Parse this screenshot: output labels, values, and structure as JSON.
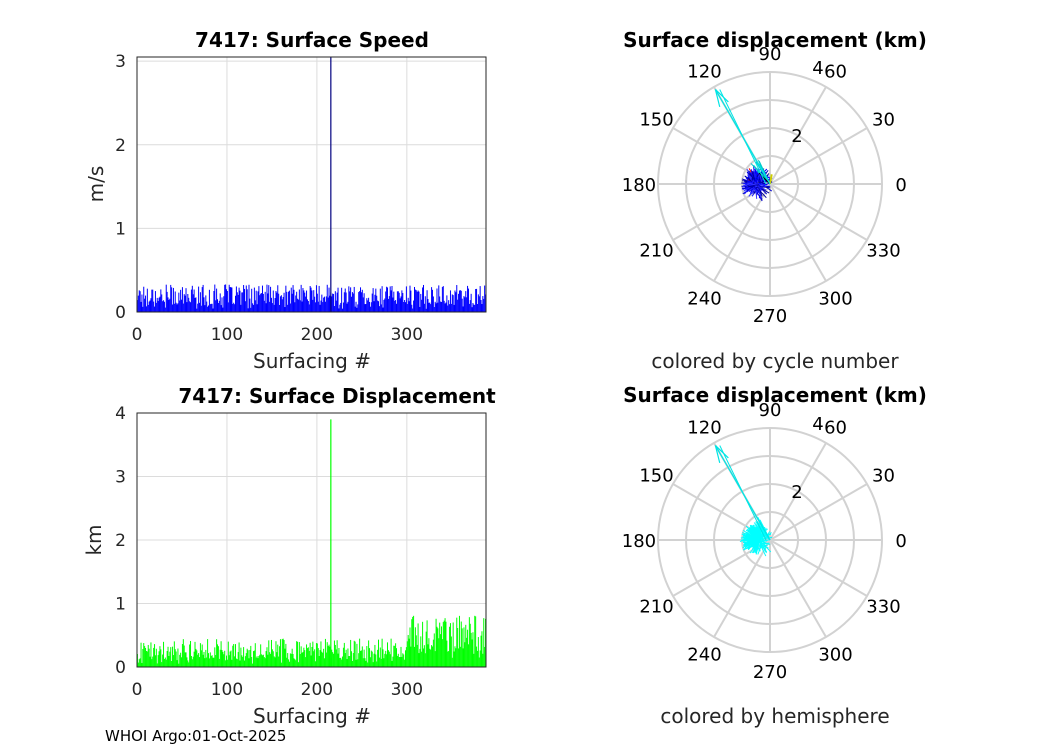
{
  "chart_data": [
    {
      "type": "bar",
      "id": "speed",
      "title": "7417: Surface Speed",
      "xlabel": "Surfacing #",
      "ylabel": "m/s",
      "xlim": [
        0,
        388
      ],
      "ylim": [
        0,
        3.05
      ],
      "xticks": [
        0,
        100,
        200,
        300
      ],
      "yticks": [
        0,
        1,
        2,
        3
      ],
      "grid": true,
      "color": "#0000ff",
      "typical_max": 0.33,
      "spikes": [
        {
          "x": 215,
          "value": 3.05,
          "color": "#000080"
        }
      ]
    },
    {
      "type": "polar",
      "id": "polar-cycle",
      "title": "Surface displacement (km)",
      "caption": "colored by cycle number",
      "rlim": [
        0,
        4
      ],
      "rticks": [
        2,
        4
      ],
      "angle_ticks": [
        90,
        60,
        30,
        0,
        330,
        300,
        270,
        240,
        210,
        180,
        150,
        120
      ],
      "long_arrow": {
        "angle_deg": 120,
        "length": 3.9,
        "color": "#00e5e5"
      },
      "cluster_color": "#0000dd"
    },
    {
      "type": "bar",
      "id": "displacement",
      "title": "7417: Surface Displacement",
      "xlabel": "Surfacing #",
      "ylabel": "km",
      "xlim": [
        0,
        388
      ],
      "ylim": [
        0,
        4
      ],
      "xticks": [
        0,
        100,
        200,
        300
      ],
      "yticks": [
        0,
        1,
        2,
        3,
        4
      ],
      "grid": true,
      "color": "#00ff00",
      "typical_max": 0.6,
      "spikes": [
        {
          "x": 215,
          "value": 3.9,
          "color": "#00ff00"
        }
      ]
    },
    {
      "type": "polar",
      "id": "polar-hemisphere",
      "title": "Surface displacement (km)",
      "caption": "colored by hemisphere",
      "rlim": [
        0,
        4
      ],
      "rticks": [
        2,
        4
      ],
      "angle_ticks": [
        90,
        60,
        30,
        0,
        330,
        300,
        270,
        240,
        210,
        180,
        150,
        120
      ],
      "long_arrow": {
        "angle_deg": 120,
        "length": 3.9,
        "color": "#00e5e5"
      },
      "cluster_color": "#00ffff"
    }
  ],
  "footer": "WHOI Argo:01-Oct-2025"
}
